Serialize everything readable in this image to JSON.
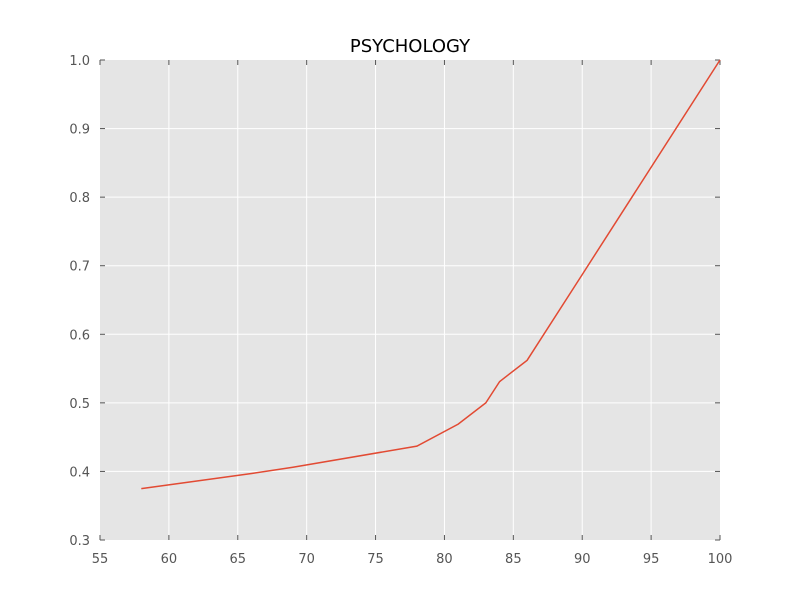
{
  "chart_data": {
    "type": "line",
    "title": "PSYCHOLOGY",
    "xlabel": "",
    "ylabel": "",
    "xlim": [
      55,
      100
    ],
    "ylim": [
      0.3,
      1.0
    ],
    "x_ticks": [
      55,
      60,
      65,
      70,
      75,
      80,
      85,
      90,
      95,
      100
    ],
    "x_tick_labels": [
      "55",
      "60",
      "65",
      "70",
      "75",
      "80",
      "85",
      "90",
      "95",
      "100"
    ],
    "y_ticks": [
      0.3,
      0.4,
      0.5,
      0.6,
      0.7,
      0.8,
      0.9,
      1.0
    ],
    "y_tick_labels": [
      "0.3",
      "0.4",
      "0.5",
      "0.6",
      "0.7",
      "0.8",
      "0.9",
      "1.0"
    ],
    "grid": true,
    "background_color": "#e5e5e5",
    "series": [
      {
        "color": "#e24a33",
        "x": [
          58,
          66,
          69,
          78,
          81,
          83,
          84,
          86,
          90,
          100
        ],
        "y": [
          0.375,
          0.397,
          0.406,
          0.437,
          0.469,
          0.5,
          0.531,
          0.562,
          0.687,
          1.0
        ]
      }
    ]
  }
}
